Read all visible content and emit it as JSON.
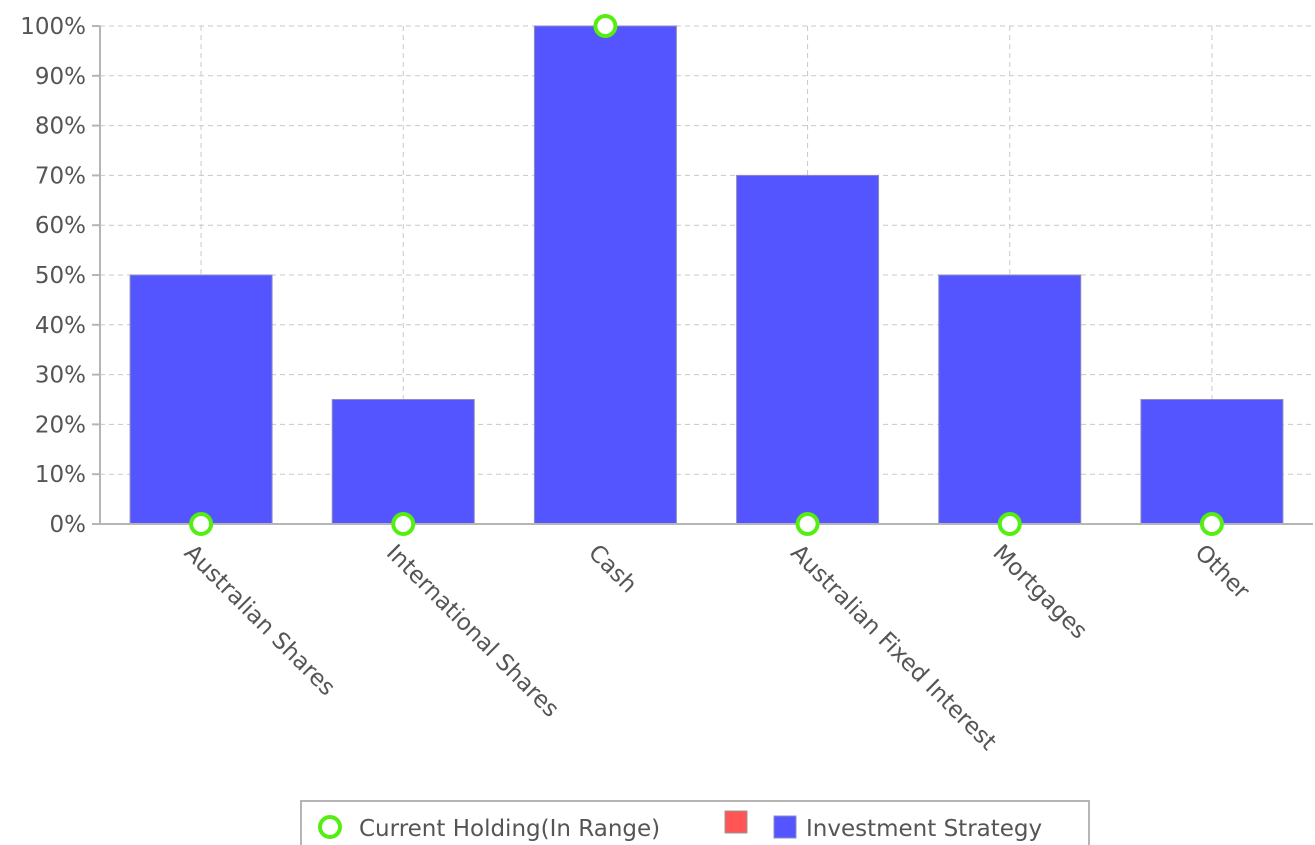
{
  "chart_data": {
    "type": "bar",
    "categories": [
      "Australian Shares",
      "International Shares",
      "Cash",
      "Australian Fixed Interest",
      "Mortgages",
      "Other"
    ],
    "series": [
      {
        "name": "Investment Strategy",
        "kind": "bar",
        "color": "#5555ff",
        "values": [
          50,
          25,
          100,
          70,
          50,
          25
        ]
      },
      {
        "name": "Current Holding(In Range)",
        "kind": "marker",
        "color": "#55ee11",
        "values": [
          0,
          0,
          100,
          0,
          0,
          0
        ]
      }
    ],
    "legend": [
      {
        "label": "Current Holding(In Range)",
        "symbol": "ring",
        "color": "#55ee11"
      },
      {
        "label": "",
        "symbol": "square",
        "color": "#ff5555"
      },
      {
        "label": "Investment Strategy",
        "symbol": "square",
        "color": "#5555ff"
      }
    ],
    "y_ticks": [
      "0%",
      "10%",
      "20%",
      "30%",
      "40%",
      "50%",
      "60%",
      "70%",
      "80%",
      "90%",
      "100%"
    ],
    "ylim": [
      0,
      100
    ],
    "grid": true,
    "legend_position": "bottom-center"
  }
}
